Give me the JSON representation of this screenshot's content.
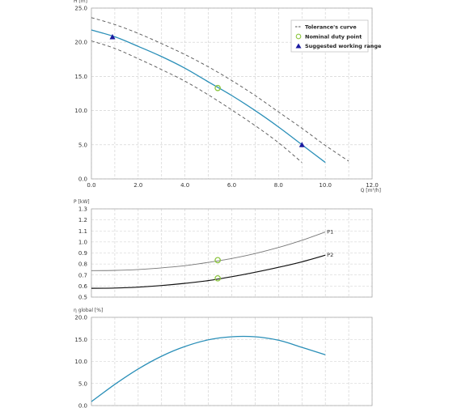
{
  "colors": {
    "curve": "#2a8fb8",
    "tolerance": "#555555",
    "nominal": "#8cc63f",
    "working_range": "#1a1aa0",
    "grid": "#cccccc",
    "p1": "#777777",
    "p2": "#111111"
  },
  "chart_data": [
    {
      "type": "line",
      "ylabel": "H [m]",
      "xlabel": "Q [m³/h]",
      "xlim": [
        0,
        12
      ],
      "ylim": [
        0,
        25
      ],
      "x_ticks": [
        "0.0",
        "2.0",
        "4.0",
        "6.0",
        "8.0",
        "10.0",
        "12.0"
      ],
      "y_ticks": [
        "0.0",
        "5.0",
        "10.0",
        "15.0",
        "20.0",
        "25.0"
      ],
      "grid": true,
      "legend_position": "top-right",
      "legend": [
        {
          "label": "Tolerance's curve",
          "icon": "dashed-line"
        },
        {
          "label": "Nominal duty point",
          "icon": "open-circle"
        },
        {
          "label": "Suggested working range",
          "icon": "filled-triangle"
        }
      ],
      "curve": [
        [
          0,
          21.8
        ],
        [
          1,
          20.8
        ],
        [
          2,
          19.4
        ],
        [
          3,
          17.9
        ],
        [
          4,
          16.2
        ],
        [
          5,
          14.2
        ],
        [
          6,
          12.2
        ],
        [
          7,
          10.0
        ],
        [
          8,
          7.6
        ],
        [
          9,
          5.0
        ],
        [
          10,
          2.4
        ]
      ],
      "tolerance_upper": [
        [
          0,
          23.6
        ],
        [
          1,
          22.6
        ],
        [
          2,
          21.3
        ],
        [
          3,
          19.8
        ],
        [
          4,
          18.2
        ],
        [
          5,
          16.4
        ],
        [
          6,
          14.4
        ],
        [
          7,
          12.2
        ],
        [
          8,
          9.8
        ],
        [
          9,
          7.4
        ],
        [
          10,
          4.9
        ],
        [
          11,
          2.6
        ]
      ],
      "tolerance_lower": [
        [
          0,
          20.2
        ],
        [
          1,
          19.1
        ],
        [
          2,
          17.6
        ],
        [
          3,
          16.0
        ],
        [
          4,
          14.3
        ],
        [
          5,
          12.3
        ],
        [
          6,
          10.1
        ],
        [
          7,
          7.8
        ],
        [
          8,
          5.3
        ],
        [
          9,
          2.4
        ]
      ],
      "nominal_point": [
        5.4,
        13.3
      ],
      "working_range": [
        [
          0.9,
          20.8
        ],
        [
          9.0,
          5.0
        ]
      ]
    },
    {
      "type": "line",
      "ylabel": "P [kW]",
      "xlim": [
        0,
        12
      ],
      "ylim": [
        0.5,
        1.3
      ],
      "y_ticks": [
        "0.5",
        "0.6",
        "0.7",
        "0.8",
        "0.9",
        "1.0",
        "1.1",
        "1.2",
        "1.3"
      ],
      "grid": true,
      "series": [
        {
          "name": "P1",
          "points": [
            [
              0,
              0.74
            ],
            [
              1,
              0.742
            ],
            [
              2,
              0.75
            ],
            [
              3,
              0.765
            ],
            [
              4,
              0.785
            ],
            [
              5,
              0.815
            ],
            [
              6,
              0.85
            ],
            [
              7,
              0.895
            ],
            [
              8,
              0.95
            ],
            [
              9,
              1.015
            ],
            [
              10,
              1.09
            ]
          ]
        },
        {
          "name": "P2",
          "points": [
            [
              0,
              0.58
            ],
            [
              1,
              0.582
            ],
            [
              2,
              0.59
            ],
            [
              3,
              0.605
            ],
            [
              4,
              0.625
            ],
            [
              5,
              0.65
            ],
            [
              6,
              0.685
            ],
            [
              7,
              0.725
            ],
            [
              8,
              0.77
            ],
            [
              9,
              0.82
            ],
            [
              10,
              0.88
            ]
          ]
        }
      ],
      "nominal_points": [
        [
          5.4,
          0.835
        ],
        [
          5.4,
          0.67
        ]
      ]
    },
    {
      "type": "line",
      "ylabel": "η global [%]",
      "xlim": [
        0,
        12
      ],
      "ylim": [
        0,
        20
      ],
      "y_ticks": [
        "0.0",
        "5.0",
        "10.0",
        "15.0",
        "20.0"
      ],
      "grid": true,
      "series": [
        {
          "points": [
            [
              0,
              0.9
            ],
            [
              1,
              4.8
            ],
            [
              2,
              8.3
            ],
            [
              3,
              11.2
            ],
            [
              4,
              13.4
            ],
            [
              5,
              14.9
            ],
            [
              6,
              15.6
            ],
            [
              7,
              15.6
            ],
            [
              8,
              14.8
            ],
            [
              9,
              13.2
            ],
            [
              10,
              11.5
            ]
          ]
        }
      ]
    }
  ]
}
